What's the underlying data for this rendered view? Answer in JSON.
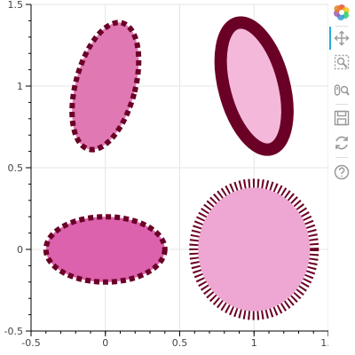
{
  "chart_data": {
    "type": "scatter",
    "glyph": "ellipse",
    "title": "",
    "xlabel": "",
    "ylabel": "",
    "xlim": [
      -0.5,
      1.5
    ],
    "ylim": [
      -0.5,
      1.5
    ],
    "xticks": [
      "-0.5",
      "0",
      "0.5",
      "1",
      "1.5"
    ],
    "yticks": [
      "-0.5",
      "0",
      "0.5",
      "1",
      "1.5"
    ],
    "grid": true,
    "series": [
      {
        "center": [
          0,
          1
        ],
        "width": 0.4,
        "height": 0.8,
        "angle_deg": -15,
        "fill": "#e078b4",
        "line_color": "#6b0026",
        "line_style": "dashed"
      },
      {
        "center": [
          1,
          1
        ],
        "width": 0.4,
        "height": 0.8,
        "angle_deg": 15,
        "fill": "#f4b9da",
        "line_color": "#6b0026",
        "line_style": "solid-thick"
      },
      {
        "center": [
          0,
          0
        ],
        "width": 0.8,
        "height": 0.4,
        "angle_deg": 0,
        "fill": "#dc62ad",
        "line_color": "#6b0026",
        "line_style": "dashed"
      },
      {
        "center": [
          1,
          0
        ],
        "width": 0.8,
        "height": 0.8,
        "angle_deg": 0,
        "fill": "#eea6d2",
        "line_color": "#6b0026",
        "line_style": "ticks"
      }
    ]
  },
  "toolbar": {
    "tools": [
      "bokeh-logo",
      "pan",
      "box-zoom",
      "wheel-zoom",
      "save",
      "reset",
      "help"
    ]
  }
}
